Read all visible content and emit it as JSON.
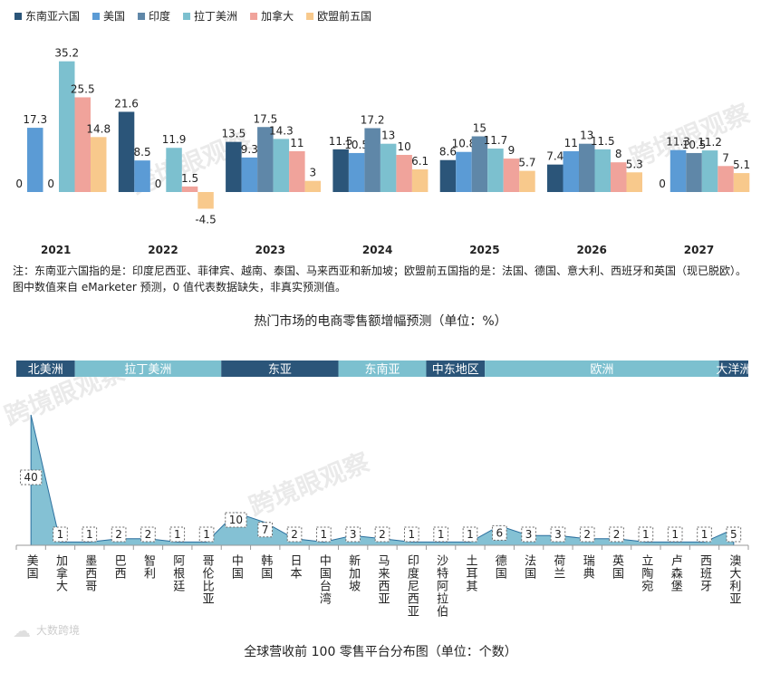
{
  "chart_data": [
    {
      "type": "bar",
      "title": "热门市场的电商零售额增幅预测（单位：%）",
      "note": "注：东南亚六国指的是：印度尼西亚、菲律宾、越南、泰国、马来西亚和新加坡；欧盟前五国指的是：法国、德国、意大利、西班牙和英国（现已脱欧）。图中数值来自 eMarketer 预测，0 值代表数据缺失，非真实预测值。",
      "categories": [
        "2021",
        "2022",
        "2023",
        "2024",
        "2025",
        "2026",
        "2027"
      ],
      "series": [
        {
          "name": "东南亚六国",
          "color": "#2b5579",
          "values": [
            0.0,
            21.6,
            13.5,
            11.5,
            8.6,
            7.4,
            0.0
          ]
        },
        {
          "name": "美国",
          "color": "#5b9bd5",
          "values": [
            17.3,
            8.5,
            9.3,
            10.5,
            10.8,
            11.0,
            11.3
          ]
        },
        {
          "name": "印度",
          "color": "#5f87a8",
          "values": [
            0.0,
            0.0,
            17.5,
            17.2,
            15.0,
            13.0,
            10.5
          ]
        },
        {
          "name": "拉丁美洲",
          "color": "#7cc0cf",
          "values": [
            35.2,
            11.9,
            14.3,
            13.0,
            11.7,
            11.5,
            11.2
          ]
        },
        {
          "name": "加拿大",
          "color": "#f0a39b",
          "values": [
            25.5,
            1.5,
            11.0,
            10.0,
            9.0,
            8.0,
            7.0
          ]
        },
        {
          "name": "欧盟前五国",
          "color": "#f8c98c",
          "values": [
            14.8,
            -4.5,
            3.0,
            6.1,
            5.7,
            5.3,
            5.1
          ]
        }
      ]
    },
    {
      "type": "area",
      "title": "全球营收前 100 零售平台分布图（单位：个数）",
      "color": "#6fb6cc",
      "categories": [
        "美国",
        "加拿大",
        "墨西哥",
        "巴西",
        "智利",
        "阿根廷",
        "哥伦比亚",
        "中国",
        "韩国",
        "日本",
        "中国台湾",
        "新加坡",
        "马来西亚",
        "印度尼西亚",
        "沙特阿拉伯",
        "土耳其",
        "德国",
        "法国",
        "荷兰",
        "瑞典",
        "英国",
        "立陶宛",
        "卢森堡",
        "西班牙",
        "澳大利亚"
      ],
      "values": [
        40,
        1,
        1,
        2,
        2,
        1,
        1,
        10,
        7,
        2,
        1,
        3,
        2,
        1,
        1,
        1,
        6,
        3,
        3,
        2,
        2,
        1,
        1,
        1,
        5
      ],
      "regions": [
        {
          "name": "北美洲",
          "count": 2,
          "color": "#2b5579"
        },
        {
          "name": "拉丁美洲",
          "count": 5,
          "color": "#7cc0cf"
        },
        {
          "name": "东亚",
          "count": 4,
          "color": "#2b5579"
        },
        {
          "name": "东南亚",
          "count": 3,
          "color": "#7cc0cf"
        },
        {
          "name": "中东地区",
          "count": 2,
          "color": "#2b5579"
        },
        {
          "name": "欧洲",
          "count": 8,
          "color": "#7cc0cf"
        },
        {
          "name": "大洋洲",
          "count": 1,
          "color": "#2b5579"
        }
      ]
    }
  ],
  "watermark": "跨境眼观察",
  "logo": "大数跨境"
}
